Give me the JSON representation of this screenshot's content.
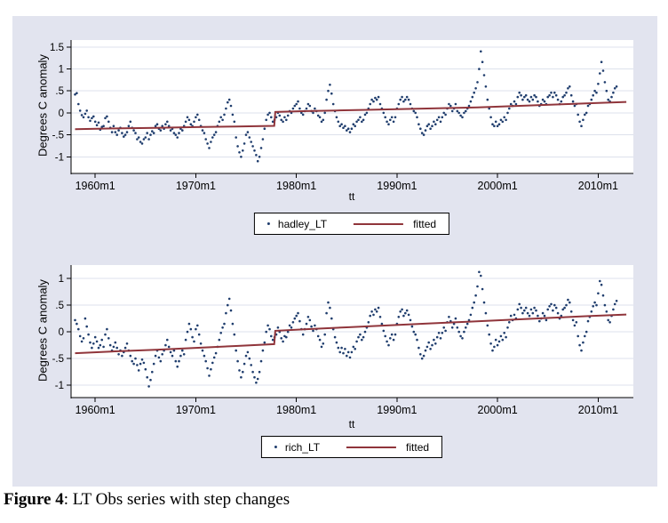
{
  "figure": {
    "caption": {
      "label": "Figure 4",
      "text": ": LT Obs series with step changes"
    },
    "colors": {
      "graph_background": "#e2e4ef",
      "plot_background": "#ffffff",
      "gridline": "#dde1ec",
      "axis": "#000000",
      "scatter_navy": "#1f3d6d",
      "fitted_maroon": "#90353b"
    }
  },
  "chart_data": [
    {
      "type": "scatter",
      "panel": "top",
      "xlabel": "tt",
      "ylabel": "Degrees C anomaly",
      "xlim": [
        1957.6,
        2013.5
      ],
      "ylim": [
        -1.38,
        1.66
      ],
      "grid": true,
      "legend_position": "bottom-center",
      "xticks": [
        {
          "v": 1960,
          "label": "1960m1"
        },
        {
          "v": 1970,
          "label": "1970m1"
        },
        {
          "v": 1980,
          "label": "1980m1"
        },
        {
          "v": 1990,
          "label": "1990m1"
        },
        {
          "v": 2000,
          "label": "2000m1"
        },
        {
          "v": 2010,
          "label": "2010m1"
        }
      ],
      "yticks": [
        {
          "v": 1.5,
          "label": "1.5"
        },
        {
          "v": 1,
          "label": "1"
        },
        {
          "v": 0.5,
          "label": ".5"
        },
        {
          "v": 0,
          "label": "0"
        },
        {
          "v": -0.5,
          "label": "-.5"
        },
        {
          "v": -1,
          "label": "-1"
        }
      ],
      "series": [
        {
          "name": "hadley_LT",
          "kind": "points",
          "color": "#1f3d6d",
          "start_year": 1958,
          "points_per_year": 6,
          "values": [
            0.42,
            0.45,
            0.2,
            0.05,
            -0.05,
            -0.1,
            -0.02,
            0.05,
            -0.1,
            -0.18,
            -0.12,
            -0.08,
            -0.2,
            -0.28,
            -0.22,
            -0.38,
            -0.32,
            -0.3,
            -0.12,
            -0.08,
            -0.2,
            -0.34,
            -0.44,
            -0.3,
            -0.44,
            -0.5,
            -0.4,
            -0.34,
            -0.46,
            -0.54,
            -0.5,
            -0.44,
            -0.3,
            -0.2,
            -0.34,
            -0.4,
            -0.46,
            -0.6,
            -0.56,
            -0.66,
            -0.7,
            -0.6,
            -0.56,
            -0.46,
            -0.6,
            -0.5,
            -0.42,
            -0.46,
            -0.3,
            -0.26,
            -0.36,
            -0.4,
            -0.3,
            -0.36,
            -0.26,
            -0.2,
            -0.3,
            -0.4,
            -0.36,
            -0.46,
            -0.5,
            -0.56,
            -0.46,
            -0.36,
            -0.4,
            -0.3,
            -0.2,
            -0.1,
            -0.16,
            -0.26,
            -0.3,
            -0.2,
            -0.1,
            -0.04,
            -0.16,
            -0.3,
            -0.4,
            -0.46,
            -0.6,
            -0.7,
            -0.8,
            -0.66,
            -0.56,
            -0.5,
            -0.44,
            -0.3,
            -0.2,
            -0.1,
            -0.16,
            -0.04,
            0.1,
            0.24,
            0.3,
            0.16,
            -0.04,
            -0.2,
            -0.56,
            -0.76,
            -0.9,
            -1.0,
            -0.86,
            -0.7,
            -0.5,
            -0.44,
            -0.56,
            -0.66,
            -0.76,
            -0.86,
            -0.96,
            -1.1,
            -1.0,
            -0.8,
            -0.6,
            -0.36,
            -0.16,
            -0.04,
            0.0,
            -0.1,
            -0.2,
            -0.16,
            -0.1,
            0.0,
            -0.06,
            -0.16,
            -0.2,
            -0.1,
            -0.16,
            -0.06,
            0.04,
            0.0,
            0.1,
            0.16,
            0.2,
            0.26,
            0.1,
            0.0,
            -0.04,
            0.04,
            0.1,
            0.2,
            0.16,
            0.04,
            0.0,
            0.1,
            0.04,
            -0.06,
            -0.1,
            -0.2,
            -0.16,
            0.0,
            0.3,
            0.5,
            0.64,
            0.44,
            0.2,
            0.04,
            -0.1,
            -0.2,
            -0.3,
            -0.26,
            -0.34,
            -0.3,
            -0.4,
            -0.36,
            -0.44,
            -0.36,
            -0.26,
            -0.3,
            -0.2,
            -0.16,
            -0.1,
            -0.2,
            -0.16,
            -0.04,
            0.0,
            0.1,
            0.2,
            0.3,
            0.26,
            0.34,
            0.3,
            0.36,
            0.2,
            0.1,
            0.0,
            -0.1,
            -0.2,
            -0.26,
            -0.16,
            -0.1,
            -0.2,
            -0.1,
            0.1,
            0.2,
            0.3,
            0.36,
            0.26,
            0.3,
            0.36,
            0.3,
            0.2,
            0.1,
            0.04,
            0.0,
            -0.1,
            -0.26,
            -0.36,
            -0.46,
            -0.5,
            -0.4,
            -0.3,
            -0.26,
            -0.36,
            -0.3,
            -0.2,
            -0.26,
            -0.16,
            -0.1,
            -0.2,
            -0.1,
            0.0,
            -0.04,
            0.1,
            0.2,
            0.16,
            0.04,
            0.1,
            0.2,
            0.04,
            0.0,
            -0.06,
            -0.1,
            0.0,
            0.04,
            0.1,
            0.16,
            0.26,
            0.36,
            0.46,
            0.56,
            0.7,
            1.0,
            1.4,
            1.16,
            0.86,
            0.6,
            0.3,
            0.1,
            -0.1,
            -0.26,
            -0.3,
            -0.2,
            -0.3,
            -0.26,
            -0.16,
            -0.2,
            -0.1,
            -0.16,
            0.0,
            0.1,
            0.2,
            0.16,
            0.26,
            0.2,
            0.36,
            0.46,
            0.4,
            0.3,
            0.36,
            0.4,
            0.3,
            0.26,
            0.36,
            0.3,
            0.4,
            0.36,
            0.26,
            0.16,
            0.2,
            0.3,
            0.26,
            0.2,
            0.36,
            0.4,
            0.46,
            0.36,
            0.46,
            0.4,
            0.3,
            0.2,
            0.26,
            0.36,
            0.4,
            0.46,
            0.56,
            0.6,
            0.4,
            0.26,
            0.16,
            0.2,
            -0.04,
            -0.2,
            -0.3,
            -0.16,
            -0.04,
            0.0,
            0.16,
            0.2,
            0.3,
            0.4,
            0.5,
            0.46,
            0.66,
            0.9,
            1.16,
            0.96,
            0.7,
            0.5,
            0.3,
            0.26,
            0.36,
            0.46,
            0.56,
            0.6
          ]
        },
        {
          "name": "fitted",
          "kind": "line",
          "color": "#90353b",
          "width": 2,
          "points": [
            [
              1958,
              -0.37
            ],
            [
              1962,
              -0.355
            ],
            [
              1966,
              -0.34
            ],
            [
              1970,
              -0.325
            ],
            [
              1974,
              -0.31
            ],
            [
              1977.8,
              -0.295
            ],
            [
              1977.9,
              0.02
            ],
            [
              1981,
              0.04
            ],
            [
              1984,
              0.055
            ],
            [
              1987,
              0.07
            ],
            [
              1990,
              0.085
            ],
            [
              1993,
              0.1
            ],
            [
              1996,
              0.115
            ],
            [
              1998,
              0.125
            ],
            [
              2001,
              0.15
            ],
            [
              2004,
              0.175
            ],
            [
              2007,
              0.2
            ],
            [
              2010,
              0.225
            ],
            [
              2012.8,
              0.25
            ]
          ]
        }
      ]
    },
    {
      "type": "scatter",
      "panel": "bottom",
      "xlabel": "tt",
      "ylabel": "Degrees C anomaly",
      "xlim": [
        1957.6,
        2013.5
      ],
      "ylim": [
        -1.23,
        1.25
      ],
      "grid": true,
      "legend_position": "bottom-center",
      "xticks": [
        {
          "v": 1960,
          "label": "1960m1"
        },
        {
          "v": 1970,
          "label": "1970m1"
        },
        {
          "v": 1980,
          "label": "1980m1"
        },
        {
          "v": 1990,
          "label": "1990m1"
        },
        {
          "v": 2000,
          "label": "2000m1"
        },
        {
          "v": 2010,
          "label": "2010m1"
        }
      ],
      "yticks": [
        {
          "v": 1,
          "label": "1"
        },
        {
          "v": 0.5,
          "label": ".5"
        },
        {
          "v": 0,
          "label": "0"
        },
        {
          "v": -0.5,
          "label": "-.5"
        },
        {
          "v": -1,
          "label": "-1"
        }
      ],
      "series": [
        {
          "name": "rich_LT",
          "kind": "points",
          "color": "#1f3d6d",
          "start_year": 1958,
          "points_per_year": 6,
          "values": [
            0.22,
            0.15,
            0.05,
            -0.08,
            -0.18,
            -0.12,
            0.25,
            0.1,
            -0.05,
            -0.2,
            -0.3,
            -0.22,
            -0.1,
            -0.18,
            -0.3,
            -0.25,
            -0.15,
            -0.28,
            -0.05,
            0.05,
            -0.12,
            -0.25,
            -0.35,
            -0.28,
            -0.2,
            -0.3,
            -0.42,
            -0.35,
            -0.45,
            -0.38,
            -0.3,
            -0.22,
            -0.35,
            -0.45,
            -0.55,
            -0.6,
            -0.5,
            -0.62,
            -0.72,
            -0.6,
            -0.52,
            -0.58,
            -0.7,
            -0.85,
            -1.02,
            -0.9,
            -0.75,
            -0.6,
            -0.45,
            -0.35,
            -0.48,
            -0.55,
            -0.42,
            -0.35,
            -0.25,
            -0.15,
            -0.28,
            -0.38,
            -0.45,
            -0.35,
            -0.55,
            -0.65,
            -0.55,
            -0.45,
            -0.35,
            -0.42,
            -0.15,
            0.0,
            0.15,
            0.05,
            -0.1,
            -0.18,
            0.05,
            0.12,
            -0.05,
            -0.22,
            -0.35,
            -0.45,
            -0.55,
            -0.68,
            -0.82,
            -0.7,
            -0.58,
            -0.48,
            -0.4,
            -0.28,
            -0.15,
            -0.02,
            0.08,
            0.15,
            0.35,
            0.5,
            0.62,
            0.4,
            0.15,
            -0.05,
            -0.35,
            -0.55,
            -0.72,
            -0.85,
            -0.75,
            -0.6,
            -0.45,
            -0.38,
            -0.5,
            -0.62,
            -0.75,
            -0.85,
            -0.95,
            -0.88,
            -0.75,
            -0.55,
            -0.35,
            -0.2,
            0.0,
            0.12,
            0.05,
            -0.08,
            -0.15,
            -0.1,
            -0.05,
            0.08,
            0.0,
            -0.12,
            -0.18,
            -0.08,
            -0.1,
            0.0,
            0.12,
            0.08,
            0.18,
            0.25,
            0.3,
            0.35,
            0.2,
            0.05,
            -0.05,
            0.05,
            0.15,
            0.28,
            0.22,
            0.1,
            0.02,
            0.12,
            0.05,
            -0.08,
            -0.15,
            -0.28,
            -0.22,
            -0.05,
            0.35,
            0.55,
            0.45,
            0.25,
            0.05,
            -0.1,
            -0.2,
            -0.3,
            -0.38,
            -0.3,
            -0.4,
            -0.32,
            -0.45,
            -0.38,
            -0.48,
            -0.38,
            -0.28,
            -0.32,
            -0.18,
            -0.1,
            -0.05,
            -0.15,
            -0.1,
            0.0,
            0.08,
            0.18,
            0.3,
            0.38,
            0.32,
            0.42,
            0.38,
            0.45,
            0.28,
            0.15,
            0.02,
            -0.08,
            -0.18,
            -0.25,
            -0.12,
            -0.05,
            -0.15,
            -0.05,
            0.15,
            0.28,
            0.38,
            0.42,
            0.3,
            0.35,
            0.4,
            0.32,
            0.22,
            0.1,
            0.0,
            -0.05,
            -0.15,
            -0.3,
            -0.42,
            -0.5,
            -0.45,
            -0.35,
            -0.28,
            -0.2,
            -0.32,
            -0.25,
            -0.15,
            -0.22,
            -0.1,
            -0.02,
            -0.12,
            -0.02,
            0.08,
            0.02,
            0.18,
            0.28,
            0.2,
            0.08,
            0.15,
            0.25,
            0.08,
            0.0,
            -0.08,
            -0.12,
            0.0,
            0.08,
            0.15,
            0.22,
            0.32,
            0.45,
            0.55,
            0.68,
            0.85,
            1.12,
            1.05,
            0.8,
            0.55,
            0.35,
            0.12,
            -0.05,
            -0.22,
            -0.35,
            -0.28,
            -0.15,
            -0.25,
            -0.18,
            -0.08,
            -0.15,
            -0.02,
            -0.1,
            0.08,
            0.18,
            0.3,
            0.22,
            0.32,
            0.25,
            0.42,
            0.52,
            0.45,
            0.35,
            0.4,
            0.45,
            0.35,
            0.3,
            0.42,
            0.35,
            0.45,
            0.4,
            0.3,
            0.2,
            0.25,
            0.35,
            0.3,
            0.22,
            0.42,
            0.48,
            0.52,
            0.4,
            0.5,
            0.45,
            0.35,
            0.25,
            0.3,
            0.42,
            0.45,
            0.5,
            0.6,
            0.55,
            0.38,
            0.22,
            0.12,
            0.18,
            -0.08,
            -0.25,
            -0.35,
            -0.2,
            -0.08,
            0.0,
            0.2,
            0.28,
            0.38,
            0.48,
            0.55,
            0.5,
            0.72,
            0.95,
            0.88,
            0.68,
            0.5,
            0.38,
            0.22,
            0.18,
            0.3,
            0.42,
            0.52,
            0.58
          ]
        },
        {
          "name": "fitted",
          "kind": "line",
          "color": "#90353b",
          "width": 2,
          "points": [
            [
              1958,
              -0.4
            ],
            [
              1962,
              -0.365
            ],
            [
              1966,
              -0.335
            ],
            [
              1970,
              -0.3
            ],
            [
              1974,
              -0.265
            ],
            [
              1977.8,
              -0.23
            ],
            [
              1977.9,
              0.02
            ],
            [
              1981,
              0.05
            ],
            [
              1985,
              0.085
            ],
            [
              1989,
              0.12
            ],
            [
              1993,
              0.155
            ],
            [
              1997,
              0.19
            ],
            [
              2001,
              0.225
            ],
            [
              2005,
              0.26
            ],
            [
              2009,
              0.295
            ],
            [
              2012.8,
              0.325
            ]
          ]
        }
      ]
    }
  ]
}
